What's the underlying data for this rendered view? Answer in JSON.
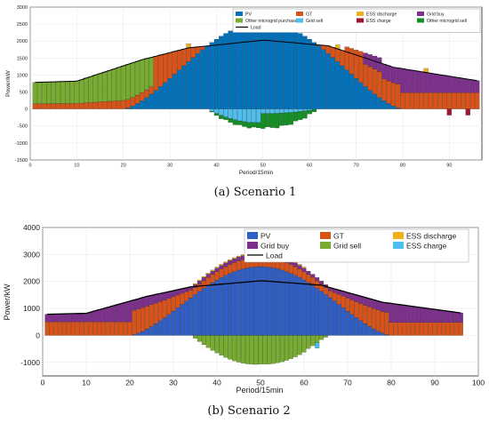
{
  "captions": [
    "(a) Scenario 1",
    "(b) Scenario 2"
  ],
  "chart_data": [
    {
      "type": "bar",
      "stacked": true,
      "caption": "(a) Scenario 1",
      "xlabel": "Period/15min",
      "ylabel": "Power/kW",
      "xlim": [
        0,
        97
      ],
      "ylim": [
        -1500,
        3000
      ],
      "xticks": [
        0,
        10,
        20,
        30,
        40,
        50,
        60,
        70,
        80,
        90
      ],
      "yticks": [
        -1500,
        -1000,
        -500,
        0,
        500,
        1000,
        1500,
        2000,
        2500,
        3000
      ],
      "grid": true,
      "legend": "top-right",
      "series": [
        {
          "name": "PV",
          "color": "#0072BD"
        },
        {
          "name": "GT",
          "color": "#D95319"
        },
        {
          "name": "ESS discharge",
          "color": "#EDB120"
        },
        {
          "name": "Grid buy",
          "color": "#7E2F8E"
        },
        {
          "name": "Other microgrid purchased",
          "color": "#77AC30"
        },
        {
          "name": "Grid sell",
          "color": "#4DBEEE"
        },
        {
          "name": "ESS charge",
          "color": "#A2142F"
        },
        {
          "name": "Other microgrid sell",
          "color": "#138F23"
        },
        {
          "name": "Load",
          "color": "#000000",
          "kind": "line"
        }
      ]
    },
    {
      "type": "bar",
      "stacked": true,
      "caption": "(b) Scenario 2",
      "xlabel": "Period/15min",
      "ylabel": "Power/kW",
      "xlim": [
        0,
        100
      ],
      "ylim": [
        -1500,
        4000
      ],
      "xticks": [
        0,
        10,
        20,
        30,
        40,
        50,
        60,
        70,
        80,
        90,
        100
      ],
      "yticks": [
        -1000,
        0,
        1000,
        2000,
        3000,
        4000
      ],
      "grid": true,
      "legend": "top-right",
      "series": [
        {
          "name": "PV",
          "color": "#2E5EC6"
        },
        {
          "name": "GT",
          "color": "#D95319"
        },
        {
          "name": "ESS discharge",
          "color": "#EDB120"
        },
        {
          "name": "Grid buy",
          "color": "#7E2F8E"
        },
        {
          "name": "Grid sell",
          "color": "#77AC30"
        },
        {
          "name": "ESS charge",
          "color": "#4DBEEE"
        },
        {
          "name": "Load",
          "color": "#000000",
          "kind": "line"
        }
      ]
    }
  ]
}
